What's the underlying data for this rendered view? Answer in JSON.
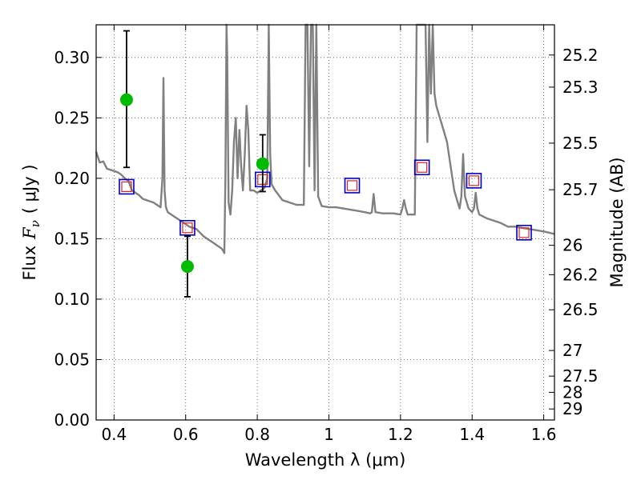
{
  "chart_data": {
    "type": "scatter",
    "xlabel": "Wavelength  λ (μm)",
    "ylabel": "Flux  F_ν  ( μJy )",
    "ylabel_parts": {
      "prefix": "Flux",
      "symbol": "F",
      "subscript": "ν",
      "unit": "( μJy )"
    },
    "y2label": "Magnitude (AB)",
    "xlim": [
      0.35,
      1.63
    ],
    "ylim": [
      0.0,
      0.327
    ],
    "grid": true,
    "x_ticks": [
      0.4,
      0.6,
      0.8,
      1.0,
      1.2,
      1.4,
      1.6
    ],
    "x_tick_labels": [
      "0.4",
      "0.6",
      "0.8",
      "1",
      "1.2",
      "1.4",
      "1.6"
    ],
    "y_ticks": [
      0.0,
      0.05,
      0.1,
      0.15,
      0.2,
      0.25,
      0.3
    ],
    "y_tick_labels": [
      "0.00",
      "0.05",
      "0.10",
      "0.15",
      "0.20",
      "0.25",
      "0.30"
    ],
    "y2_ticks": [
      25.2,
      25.3,
      25.5,
      25.7,
      26,
      26.2,
      26.5,
      27,
      27.5,
      28,
      29
    ],
    "y2_tick_labels": [
      "25.2",
      "25.3",
      "25.5",
      "25.7",
      "26",
      "26.2",
      "26.5",
      "27",
      "27.5",
      "28",
      "29"
    ],
    "colors": {
      "model": "#808080",
      "observed": "#00bb00",
      "errorbar": "#000000",
      "model_photometry": "#0000cc",
      "model_photometry_inner": "#dd2222"
    },
    "series": [
      {
        "marker": "line",
        "x": [
          0.35,
          0.36,
          0.37,
          0.38,
          0.39,
          0.4,
          0.41,
          0.42,
          0.43,
          0.44,
          0.45,
          0.46,
          0.47,
          0.48,
          0.49,
          0.5,
          0.51,
          0.52,
          0.53,
          0.535,
          0.538,
          0.541,
          0.545,
          0.55,
          0.56,
          0.57,
          0.58,
          0.59,
          0.6,
          0.61,
          0.62,
          0.63,
          0.64,
          0.65,
          0.66,
          0.67,
          0.68,
          0.69,
          0.7,
          0.705,
          0.708,
          0.711,
          0.714,
          0.716,
          0.72,
          0.725,
          0.73,
          0.735,
          0.74,
          0.745,
          0.75,
          0.755,
          0.76,
          0.765,
          0.77,
          0.775,
          0.78,
          0.79,
          0.8,
          0.81,
          0.82,
          0.828,
          0.832,
          0.836,
          0.84,
          0.85,
          0.86,
          0.87,
          0.88,
          0.89,
          0.9,
          0.91,
          0.92,
          0.93,
          0.935,
          0.94,
          0.945,
          0.95,
          0.955,
          0.96,
          0.965,
          0.97,
          0.98,
          1.0,
          1.02,
          1.04,
          1.06,
          1.08,
          1.1,
          1.115,
          1.12,
          1.125,
          1.13,
          1.15,
          1.18,
          1.2,
          1.205,
          1.21,
          1.215,
          1.22,
          1.24,
          1.245,
          1.25,
          1.26,
          1.265,
          1.27,
          1.275,
          1.28,
          1.285,
          1.29,
          1.295,
          1.3,
          1.31,
          1.32,
          1.33,
          1.34,
          1.35,
          1.36,
          1.365,
          1.37,
          1.375,
          1.38,
          1.39,
          1.4,
          1.405,
          1.41,
          1.415,
          1.42,
          1.44,
          1.46,
          1.48,
          1.5,
          1.52,
          1.54,
          1.56,
          1.58,
          1.6,
          1.63
        ],
        "y": [
          0.222,
          0.213,
          0.214,
          0.208,
          0.207,
          0.206,
          0.205,
          0.203,
          0.2,
          0.198,
          0.19,
          0.188,
          0.186,
          0.183,
          0.182,
          0.181,
          0.18,
          0.178,
          0.176,
          0.2,
          0.283,
          0.19,
          0.176,
          0.172,
          0.17,
          0.168,
          0.166,
          0.164,
          0.162,
          0.16,
          0.159,
          0.158,
          0.155,
          0.152,
          0.15,
          0.148,
          0.146,
          0.144,
          0.142,
          0.14,
          0.138,
          0.2,
          0.327,
          0.3,
          0.18,
          0.17,
          0.19,
          0.23,
          0.25,
          0.2,
          0.24,
          0.21,
          0.19,
          0.22,
          0.26,
          0.24,
          0.19,
          0.19,
          0.188,
          0.19,
          0.192,
          0.2,
          0.327,
          0.22,
          0.195,
          0.19,
          0.186,
          0.182,
          0.181,
          0.18,
          0.179,
          0.178,
          0.178,
          0.178,
          0.327,
          0.327,
          0.21,
          0.327,
          0.327,
          0.19,
          0.327,
          0.185,
          0.177,
          0.176,
          0.176,
          0.175,
          0.174,
          0.173,
          0.172,
          0.171,
          0.172,
          0.187,
          0.172,
          0.171,
          0.171,
          0.17,
          0.175,
          0.182,
          0.175,
          0.17,
          0.17,
          0.327,
          0.327,
          0.327,
          0.327,
          0.327,
          0.23,
          0.327,
          0.27,
          0.327,
          0.27,
          0.26,
          0.25,
          0.24,
          0.23,
          0.21,
          0.19,
          0.18,
          0.175,
          0.185,
          0.22,
          0.185,
          0.175,
          0.172,
          0.175,
          0.188,
          0.175,
          0.17,
          0.167,
          0.165,
          0.163,
          0.16,
          0.16,
          0.159,
          0.158,
          0.157,
          0.156,
          0.154
        ]
      },
      {
        "marker": "circle",
        "x": [
          0.435,
          0.605,
          0.815
        ],
        "y": [
          0.265,
          0.127,
          0.212
        ],
        "err_low": [
          0.209,
          0.102,
          0.189
        ],
        "err_high": [
          0.322,
          0.152,
          0.236
        ]
      },
      {
        "marker": "open-square",
        "x": [
          0.435,
          0.605,
          0.815,
          1.065,
          1.26,
          1.405,
          1.545
        ],
        "y": [
          0.193,
          0.159,
          0.199,
          0.194,
          0.209,
          0.198,
          0.155
        ]
      }
    ]
  }
}
